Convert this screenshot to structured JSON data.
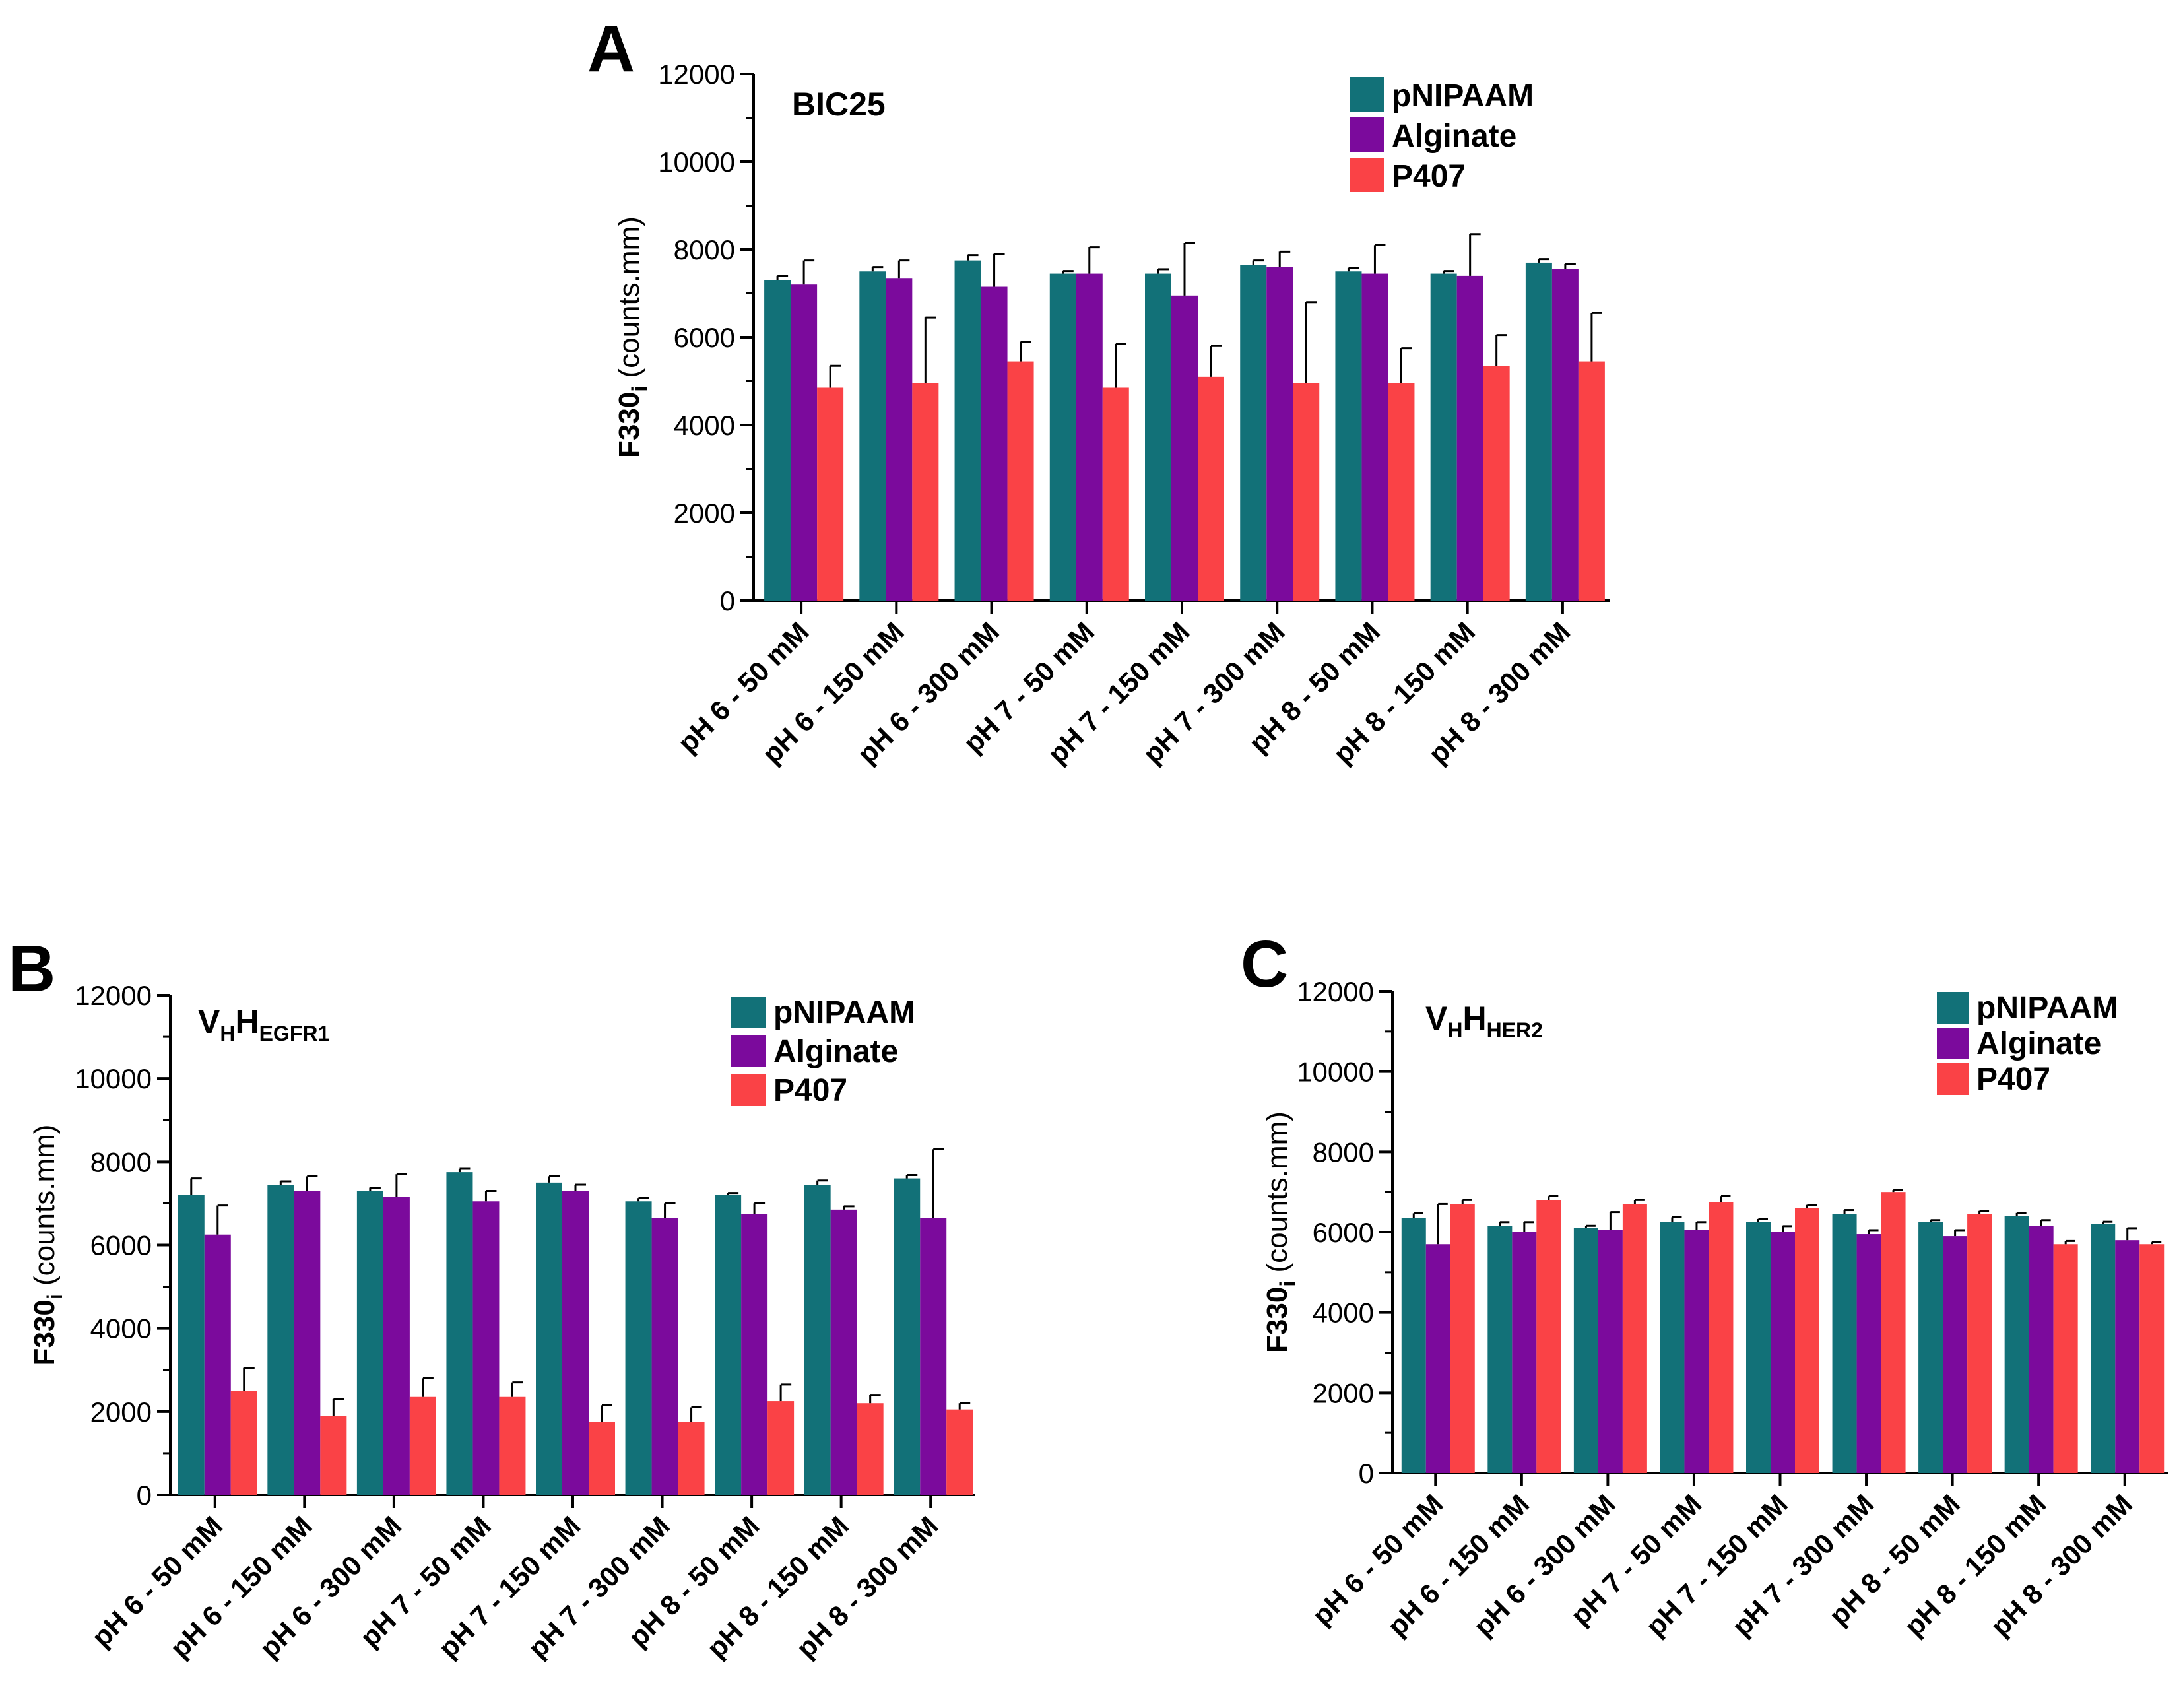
{
  "colors": {
    "pNIPAAM": "#127178",
    "Alginate": "#7b0a9c",
    "P407": "#fa4246",
    "axis": "#000000"
  },
  "chart_data": [
    {
      "panel": "A",
      "type": "bar",
      "title": "BIC25",
      "ylabel": "F330",
      "ylabel_sub": "i",
      "ylabel_units": " (counts.mm)",
      "ylim": [
        0,
        12000
      ],
      "yticks": [
        0,
        2000,
        4000,
        6000,
        8000,
        10000,
        12000
      ],
      "categories": [
        "pH 6 - 50 mM",
        "pH 6 - 150 mM",
        "pH 6 - 300 mM",
        "pH 7 - 50 mM",
        "pH 7 - 150 mM",
        "pH 7 - 300 mM",
        "pH 8 - 50 mM",
        "pH 8 - 150 mM",
        "pH 8 - 300 mM"
      ],
      "series": [
        {
          "name": "pNIPAAM",
          "values": [
            7300,
            7500,
            7750,
            7450,
            7450,
            7650,
            7500,
            7450,
            7700
          ],
          "errors": [
            100,
            100,
            120,
            60,
            100,
            100,
            80,
            60,
            80
          ]
        },
        {
          "name": "Alginate",
          "values": [
            7200,
            7350,
            7150,
            7450,
            6950,
            7600,
            7450,
            7400,
            7550
          ],
          "errors": [
            550,
            400,
            750,
            600,
            1200,
            350,
            650,
            950,
            120
          ]
        },
        {
          "name": "P407",
          "values": [
            4850,
            4950,
            5450,
            4850,
            5100,
            4950,
            4950,
            5350,
            5450
          ],
          "errors": [
            500,
            1500,
            450,
            1000,
            700,
            1850,
            800,
            700,
            1100
          ]
        }
      ]
    },
    {
      "panel": "B",
      "type": "bar",
      "title": "V",
      "title_sub1": "H",
      "title_mid": "H",
      "title_sub2": "EGFR1",
      "ylabel": "F330",
      "ylabel_sub": "i",
      "ylabel_units": " (counts.mm)",
      "ylim": [
        0,
        12000
      ],
      "yticks": [
        0,
        2000,
        4000,
        6000,
        8000,
        10000,
        12000
      ],
      "categories": [
        "pH 6 - 50 mM",
        "pH 6 - 150 mM",
        "pH 6 - 300 mM",
        "pH 7 - 50 mM",
        "pH 7 - 150 mM",
        "pH 7 - 300 mM",
        "pH 8 - 50 mM",
        "pH 8 - 150 mM",
        "pH 8 - 300 mM"
      ],
      "series": [
        {
          "name": "pNIPAAM",
          "values": [
            7200,
            7450,
            7300,
            7750,
            7500,
            7050,
            7200,
            7450,
            7600
          ],
          "errors": [
            400,
            80,
            80,
            80,
            150,
            80,
            50,
            100,
            80
          ]
        },
        {
          "name": "Alginate",
          "values": [
            6250,
            7300,
            7150,
            7050,
            7300,
            6650,
            6750,
            6850,
            6650
          ],
          "errors": [
            700,
            350,
            550,
            250,
            150,
            350,
            250,
            80,
            1650
          ]
        },
        {
          "name": "P407",
          "values": [
            2500,
            1900,
            2350,
            2350,
            1750,
            1750,
            2250,
            2200,
            2050
          ],
          "errors": [
            550,
            400,
            450,
            350,
            400,
            350,
            400,
            200,
            150
          ]
        }
      ]
    },
    {
      "panel": "C",
      "type": "bar",
      "title": "V",
      "title_sub1": "H",
      "title_mid": "H",
      "title_sub2": "HER2",
      "ylabel": "F330",
      "ylabel_sub": "i",
      "ylabel_units": " (counts.mm)",
      "ylim": [
        0,
        12000
      ],
      "yticks": [
        0,
        2000,
        4000,
        6000,
        8000,
        10000,
        12000
      ],
      "categories": [
        "pH 6 - 50 mM",
        "pH 6 - 150 mM",
        "pH 6 - 300 mM",
        "pH 7 - 50 mM",
        "pH 7 - 150 mM",
        "pH 7 - 300 mM",
        "pH 8 - 50 mM",
        "pH 8 - 150 mM",
        "pH 8 - 300 mM"
      ],
      "series": [
        {
          "name": "pNIPAAM",
          "values": [
            6350,
            6150,
            6100,
            6250,
            6250,
            6450,
            6250,
            6400,
            6200
          ],
          "errors": [
            120,
            100,
            60,
            120,
            80,
            100,
            50,
            80,
            60
          ]
        },
        {
          "name": "Alginate",
          "values": [
            5700,
            6000,
            6050,
            6050,
            6000,
            5950,
            5900,
            6150,
            5800
          ],
          "errors": [
            1000,
            250,
            450,
            200,
            150,
            100,
            150,
            150,
            300
          ]
        },
        {
          "name": "P407",
          "values": [
            6700,
            6800,
            6700,
            6750,
            6600,
            7000,
            6450,
            5700,
            5700
          ],
          "errors": [
            100,
            100,
            100,
            150,
            80,
            50,
            80,
            80,
            50
          ]
        }
      ]
    }
  ]
}
